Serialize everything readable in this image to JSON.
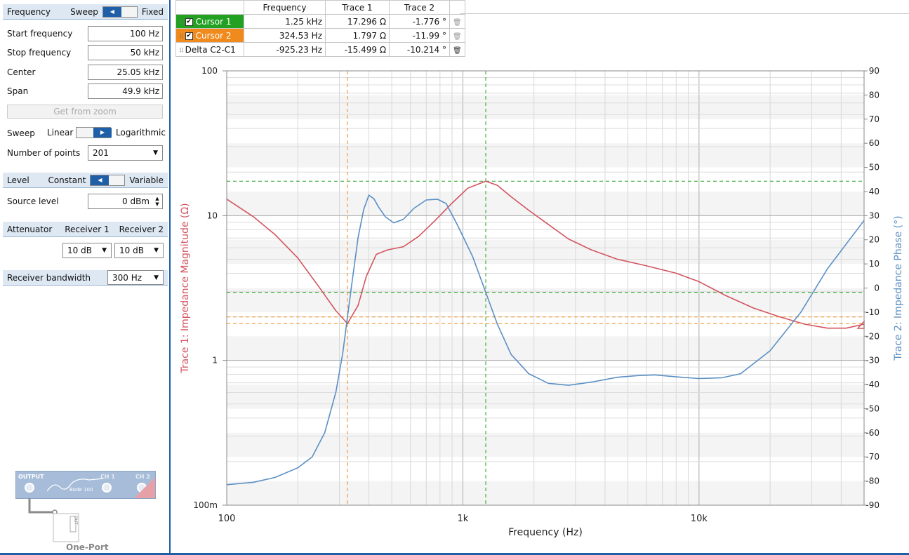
{
  "left_panel": {
    "frequency": {
      "header": "Frequency",
      "toggle_left": "Sweep",
      "toggle_right": "Fixed",
      "start_label": "Start frequency",
      "start_value": "100 Hz",
      "stop_label": "Stop frequency",
      "stop_value": "50 kHz",
      "center_label": "Center",
      "center_value": "25.05 kHz",
      "span_label": "Span",
      "span_value": "49.9 kHz",
      "get_from_zoom": "Get from zoom",
      "sweep_label": "Sweep",
      "sweep_left": "Linear",
      "sweep_right": "Logarithmic",
      "points_label": "Number of points",
      "points_value": "201"
    },
    "level": {
      "header": "Level",
      "toggle_left": "Constant",
      "toggle_right": "Variable",
      "source_label": "Source level",
      "source_value": "0 dBm"
    },
    "attenuator": {
      "header": "Attenuator",
      "receiver1": "Receiver 1",
      "receiver2": "Receiver 2",
      "r1_value": "10 dB",
      "r2_value": "10 dB"
    },
    "bandwidth": {
      "label": "Receiver bandwidth",
      "value": "300 Hz"
    },
    "device": {
      "output": "OUTPUT",
      "ch1": "CH 1",
      "ch2": "CH 2",
      "model": "Bode 100",
      "dut": "DUT",
      "mode": "One-Port"
    }
  },
  "cursor_table": {
    "headers": [
      "Frequency",
      "Trace 1",
      "Trace 2"
    ],
    "rows": [
      {
        "name": "Cursor 1",
        "freq": "1.25 kHz",
        "t1": "17.296 Ω",
        "t2": "-1.776 °",
        "color": "#22a022"
      },
      {
        "name": "Cursor 2",
        "freq": "324.53 Hz",
        "t1": "1.797 Ω",
        "t2": "-11.99 °",
        "color": "#f08a1c"
      },
      {
        "name": "Delta C2-C1",
        "freq": "-925.23 Hz",
        "t1": "-15.499 Ω",
        "t2": "-10.214 °"
      }
    ]
  },
  "chart_data": {
    "type": "line",
    "xlabel": "Frequency (Hz)",
    "ylabel": "Trace 1: Impedance Magnitude (Ω)",
    "y2label": "Trace 2: Impedance Phase (°)",
    "xscale": "log",
    "xlim": [
      100,
      50000
    ],
    "yscale": "log",
    "ylim": [
      0.1,
      100
    ],
    "y2lim": [
      -90,
      90
    ],
    "x_ticks": [
      {
        "v": 100,
        "label": "100"
      },
      {
        "v": 1000,
        "label": "1k"
      },
      {
        "v": 10000,
        "label": "10k"
      }
    ],
    "y_ticks": [
      {
        "v": 0.1,
        "label": "100m"
      },
      {
        "v": 1,
        "label": "1"
      },
      {
        "v": 10,
        "label": "10"
      },
      {
        "v": 100,
        "label": "100"
      }
    ],
    "y2_ticks": [
      90,
      80,
      70,
      60,
      50,
      40,
      30,
      20,
      10,
      0,
      -10,
      -20,
      -30,
      -40,
      -50,
      -60,
      -70,
      -80,
      -90
    ],
    "grid": true,
    "colors": {
      "trace1": "#d2555f",
      "trace2": "#5a8fc4",
      "cursor1": "#22a022",
      "cursor2": "#f08a1c"
    },
    "cursors": [
      {
        "x": 1250,
        "y1": 17.296,
        "y2": -1.776
      },
      {
        "x": 324.53,
        "y1": 1.797,
        "y2": -11.99
      }
    ],
    "series": [
      {
        "axis": "left",
        "x": [
          100,
          130,
          160,
          200,
          250,
          290,
          324.53,
          360,
          390,
          430,
          480,
          560,
          650,
          760,
          900,
          1050,
          1250,
          1400,
          1600,
          1900,
          2300,
          2800,
          3500,
          4500,
          6000,
          8000,
          10000,
          13000,
          17000,
          22000,
          28000,
          35000,
          42000,
          50000
        ],
        "values": [
          13,
          9.8,
          7.4,
          5.1,
          3.1,
          2.2,
          1.797,
          2.4,
          3.8,
          5.4,
          5.8,
          6.1,
          7.2,
          9.2,
          12.2,
          15.5,
          17.296,
          16.2,
          13.5,
          10.9,
          8.7,
          6.9,
          5.8,
          5.0,
          4.5,
          4.0,
          3.5,
          2.8,
          2.3,
          2.0,
          1.78,
          1.67,
          1.67,
          1.78
        ]
      },
      {
        "axis": "right",
        "x": [
          100,
          130,
          160,
          200,
          230,
          260,
          290,
          310,
          324.53,
          340,
          360,
          380,
          400,
          420,
          440,
          470,
          510,
          560,
          620,
          700,
          780,
          850,
          950,
          1100,
          1250,
          1400,
          1600,
          1900,
          2300,
          2800,
          3500,
          4500,
          5500,
          6500,
          8000,
          10000,
          12500,
          15000,
          20000,
          27000,
          35000,
          50000
        ],
        "values": [
          -81.5,
          -80.5,
          -78.5,
          -74.5,
          -70,
          -60,
          -43,
          -27,
          -11.99,
          3,
          21,
          32.5,
          38.5,
          37,
          33.5,
          29.5,
          27,
          28.5,
          33,
          36.5,
          36.8,
          35,
          26,
          13,
          -1.776,
          -15,
          -27.5,
          -35.5,
          -39.5,
          -40.3,
          -39,
          -37,
          -36.3,
          -36,
          -36.8,
          -37.5,
          -37.2,
          -35.5,
          -26,
          -10,
          8,
          28
        ]
      }
    ]
  }
}
